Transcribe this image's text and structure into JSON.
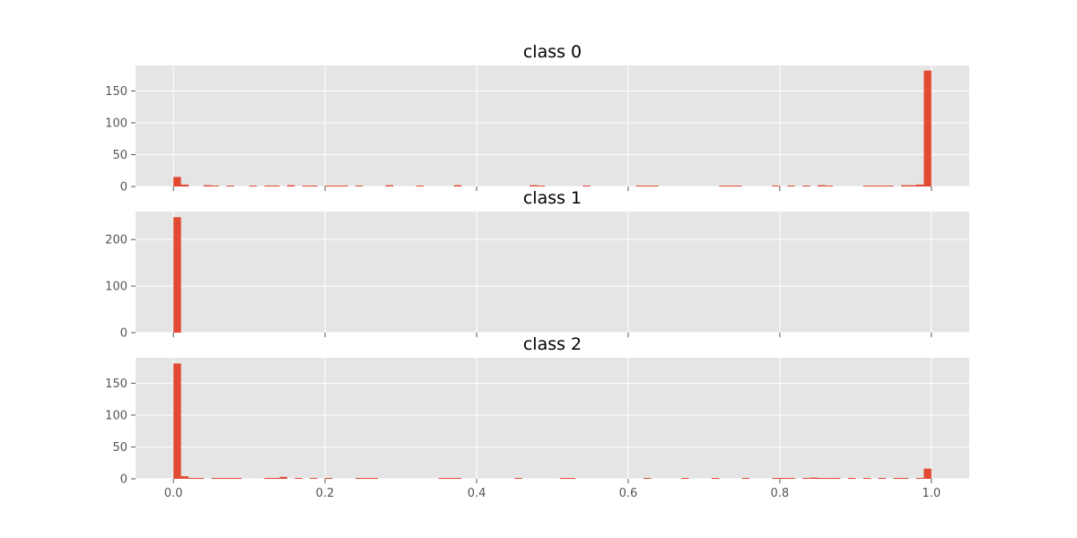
{
  "chart_data": {
    "type": "bar",
    "subtype": "histogram",
    "bin_width": 0.01,
    "xlim": [
      -0.05,
      1.05
    ],
    "xticks": [
      "0.0",
      "0.2",
      "0.4",
      "0.6",
      "0.8",
      "1.0"
    ],
    "xtick_values": [
      0.0,
      0.2,
      0.4,
      0.6,
      0.8,
      1.0
    ],
    "grid": true,
    "bar_color": "#e24a33",
    "background_color": "#e5e5e5",
    "panels": [
      {
        "title": "class 0",
        "ylim": [
          0,
          190
        ],
        "yticks": [
          "0",
          "50",
          "100",
          "150"
        ],
        "ytick_values": [
          0,
          50,
          100,
          150
        ],
        "bins": [
          {
            "x": 0.0,
            "count": 15
          },
          {
            "x": 0.01,
            "count": 3
          },
          {
            "x": 0.04,
            "count": 2
          },
          {
            "x": 0.05,
            "count": 1
          },
          {
            "x": 0.07,
            "count": 1
          },
          {
            "x": 0.1,
            "count": 1
          },
          {
            "x": 0.12,
            "count": 1
          },
          {
            "x": 0.13,
            "count": 1
          },
          {
            "x": 0.15,
            "count": 2
          },
          {
            "x": 0.17,
            "count": 1
          },
          {
            "x": 0.18,
            "count": 1
          },
          {
            "x": 0.2,
            "count": 1
          },
          {
            "x": 0.21,
            "count": 1
          },
          {
            "x": 0.22,
            "count": 1
          },
          {
            "x": 0.24,
            "count": 1
          },
          {
            "x": 0.28,
            "count": 2
          },
          {
            "x": 0.32,
            "count": 1
          },
          {
            "x": 0.37,
            "count": 2
          },
          {
            "x": 0.47,
            "count": 2
          },
          {
            "x": 0.48,
            "count": 1
          },
          {
            "x": 0.54,
            "count": 1
          },
          {
            "x": 0.61,
            "count": 1
          },
          {
            "x": 0.62,
            "count": 1
          },
          {
            "x": 0.63,
            "count": 1
          },
          {
            "x": 0.72,
            "count": 1
          },
          {
            "x": 0.73,
            "count": 1
          },
          {
            "x": 0.74,
            "count": 1
          },
          {
            "x": 0.79,
            "count": 1
          },
          {
            "x": 0.81,
            "count": 1
          },
          {
            "x": 0.83,
            "count": 1
          },
          {
            "x": 0.85,
            "count": 2
          },
          {
            "x": 0.86,
            "count": 1
          },
          {
            "x": 0.91,
            "count": 1
          },
          {
            "x": 0.92,
            "count": 1
          },
          {
            "x": 0.93,
            "count": 1
          },
          {
            "x": 0.94,
            "count": 1
          },
          {
            "x": 0.96,
            "count": 2
          },
          {
            "x": 0.97,
            "count": 2
          },
          {
            "x": 0.98,
            "count": 3
          },
          {
            "x": 0.99,
            "count": 182
          }
        ]
      },
      {
        "title": "class 1",
        "ylim": [
          0,
          260
        ],
        "yticks": [
          "0",
          "100",
          "200"
        ],
        "ytick_values": [
          0,
          100,
          200
        ],
        "bins": [
          {
            "x": 0.0,
            "count": 248
          }
        ]
      },
      {
        "title": "class 2",
        "ylim": [
          0,
          190
        ],
        "yticks": [
          "0",
          "50",
          "100",
          "150"
        ],
        "ytick_values": [
          0,
          50,
          100,
          150
        ],
        "bins": [
          {
            "x": 0.0,
            "count": 181
          },
          {
            "x": 0.01,
            "count": 4
          },
          {
            "x": 0.02,
            "count": 1
          },
          {
            "x": 0.03,
            "count": 1
          },
          {
            "x": 0.05,
            "count": 1
          },
          {
            "x": 0.06,
            "count": 1
          },
          {
            "x": 0.07,
            "count": 1
          },
          {
            "x": 0.08,
            "count": 1
          },
          {
            "x": 0.12,
            "count": 1
          },
          {
            "x": 0.13,
            "count": 1
          },
          {
            "x": 0.14,
            "count": 3
          },
          {
            "x": 0.16,
            "count": 1
          },
          {
            "x": 0.18,
            "count": 1
          },
          {
            "x": 0.2,
            "count": 1
          },
          {
            "x": 0.24,
            "count": 1
          },
          {
            "x": 0.25,
            "count": 1
          },
          {
            "x": 0.26,
            "count": 1
          },
          {
            "x": 0.35,
            "count": 1
          },
          {
            "x": 0.36,
            "count": 1
          },
          {
            "x": 0.37,
            "count": 1
          },
          {
            "x": 0.45,
            "count": 1
          },
          {
            "x": 0.51,
            "count": 1
          },
          {
            "x": 0.52,
            "count": 1
          },
          {
            "x": 0.62,
            "count": 1
          },
          {
            "x": 0.67,
            "count": 1
          },
          {
            "x": 0.71,
            "count": 1
          },
          {
            "x": 0.75,
            "count": 1
          },
          {
            "x": 0.79,
            "count": 1
          },
          {
            "x": 0.8,
            "count": 1
          },
          {
            "x": 0.81,
            "count": 1
          },
          {
            "x": 0.83,
            "count": 1
          },
          {
            "x": 0.84,
            "count": 2
          },
          {
            "x": 0.85,
            "count": 1
          },
          {
            "x": 0.86,
            "count": 1
          },
          {
            "x": 0.87,
            "count": 1
          },
          {
            "x": 0.89,
            "count": 1
          },
          {
            "x": 0.91,
            "count": 1
          },
          {
            "x": 0.93,
            "count": 1
          },
          {
            "x": 0.95,
            "count": 1
          },
          {
            "x": 0.96,
            "count": 1
          },
          {
            "x": 0.98,
            "count": 1
          },
          {
            "x": 0.99,
            "count": 16
          }
        ]
      }
    ]
  }
}
